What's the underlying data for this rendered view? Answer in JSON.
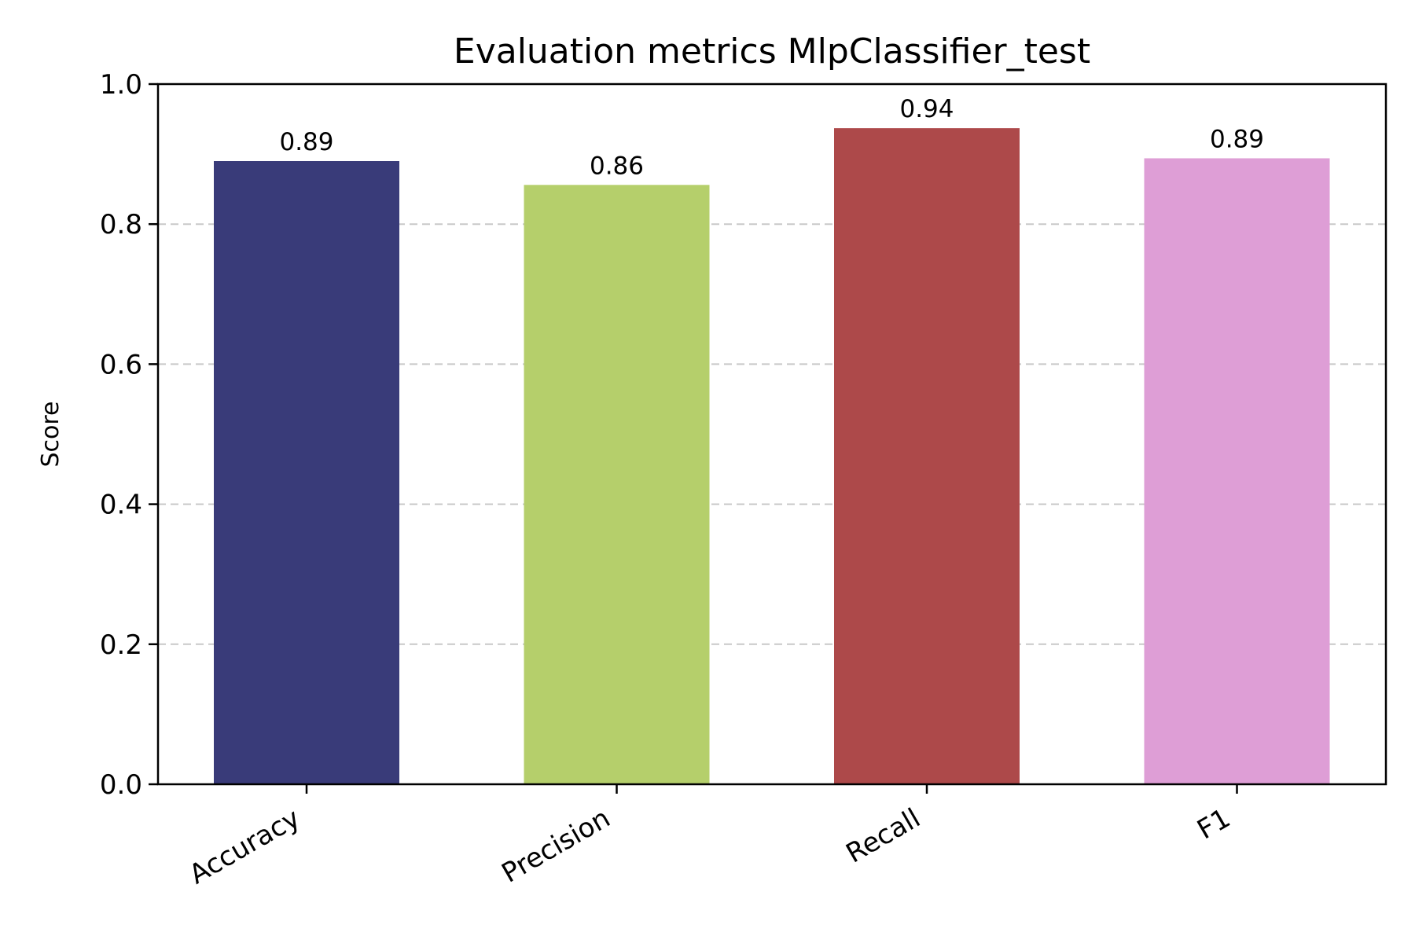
{
  "chart_data": {
    "type": "bar",
    "title": "Evaluation metrics MlpClassifier_test",
    "xlabel": "",
    "ylabel": "Score",
    "categories": [
      "Accuracy",
      "Precision",
      "Recall",
      "F1"
    ],
    "values": [
      0.89,
      0.856,
      0.937,
      0.894
    ],
    "data_labels": [
      "0.89",
      "0.86",
      "0.94",
      "0.89"
    ],
    "colors": [
      "#393b79",
      "#b5cf6b",
      "#ad494a",
      "#de9ed6"
    ],
    "ylim": [
      0,
      1.0
    ],
    "yticks": [
      0.0,
      0.2,
      0.4,
      0.6,
      0.8,
      1.0
    ],
    "ytick_labels": [
      "0.0",
      "0.2",
      "0.4",
      "0.6",
      "0.8",
      "1.0"
    ],
    "grid": "y, dashed",
    "legend": "none"
  }
}
